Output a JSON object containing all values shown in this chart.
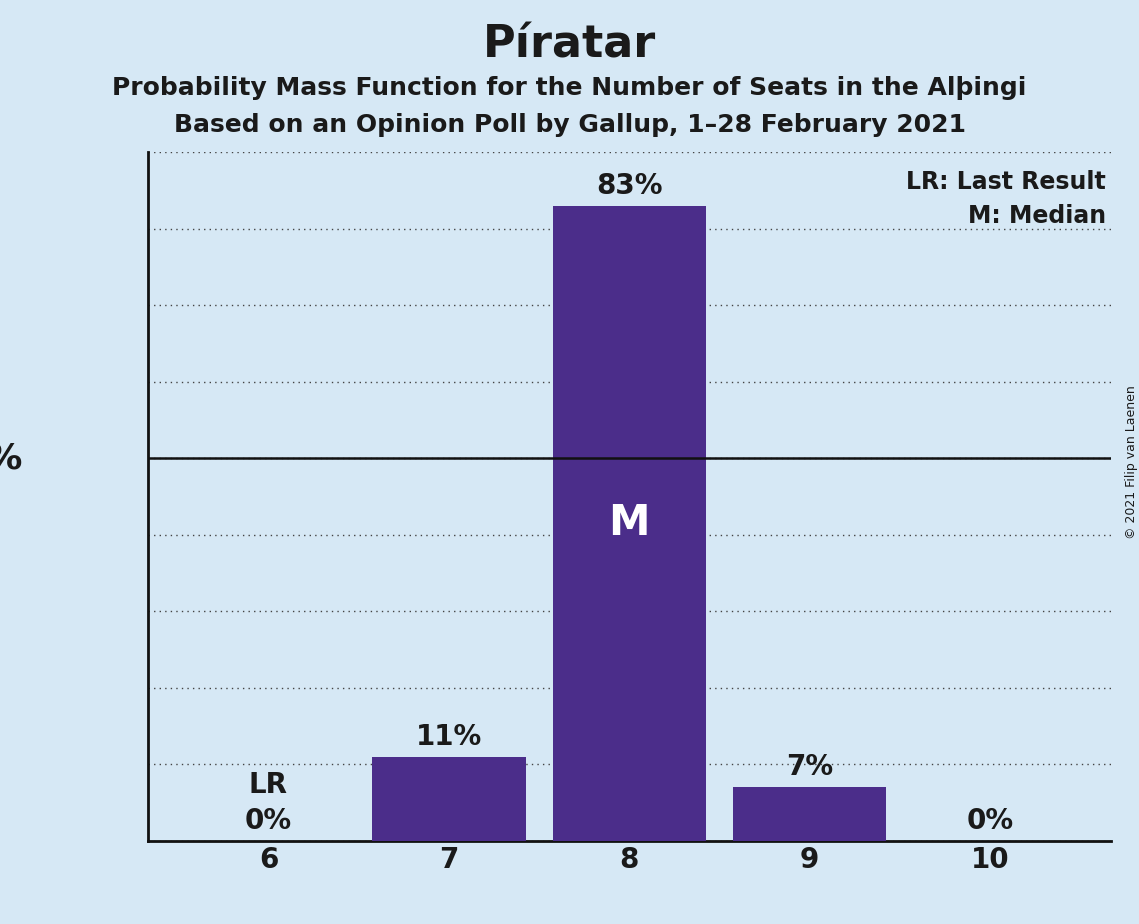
{
  "title": "Píratar",
  "subtitle1": "Probability Mass Function for the Number of Seats in the Alþingi",
  "subtitle2": "Based on an Opinion Poll by Gallup, 1–28 February 2021",
  "copyright": "© 2021 Filip van Laenen",
  "categories": [
    6,
    7,
    8,
    9,
    10
  ],
  "values": [
    0,
    11,
    83,
    7,
    0
  ],
  "bar_color": "#4b2d8a",
  "background_color": "#d6e8f5",
  "median_bar": 8,
  "last_result_bar": 6,
  "median_label": "M",
  "lr_label": "LR",
  "legend_lr": "LR: Last Result",
  "legend_m": "M: Median",
  "ylim": [
    0,
    90
  ],
  "title_fontsize": 32,
  "subtitle_fontsize": 18,
  "bar_label_fontsize": 20,
  "tick_label_fontsize": 20,
  "annotation_fontsize": 20,
  "legend_fontsize": 17,
  "median_fontsize": 30,
  "copyright_fontsize": 9,
  "ylabel_fontsize": 26
}
